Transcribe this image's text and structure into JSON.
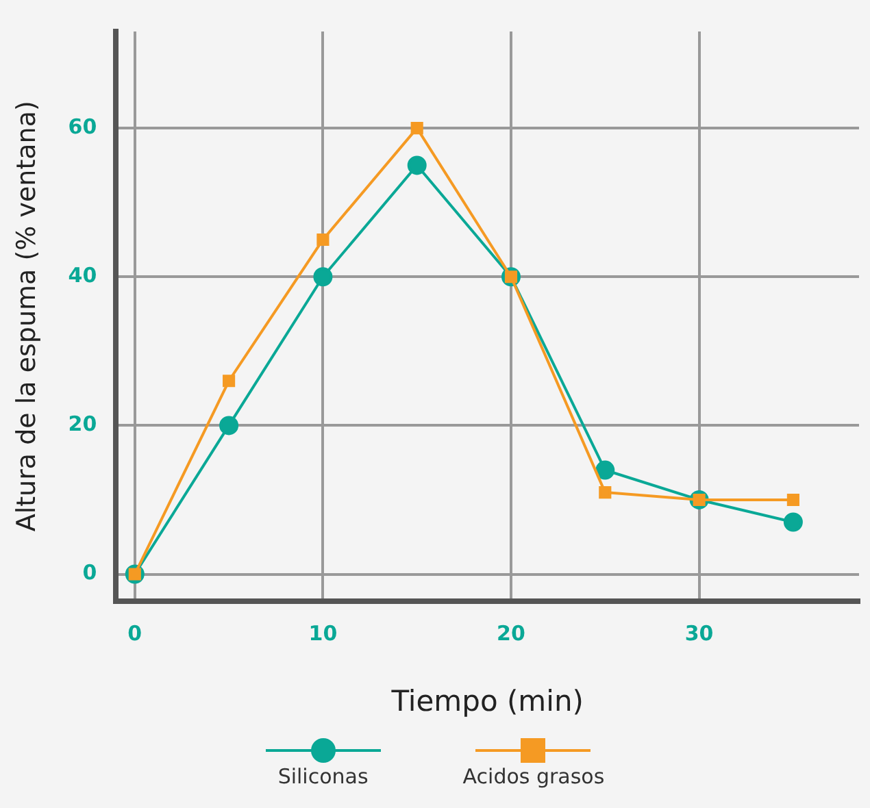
{
  "chart_data": {
    "type": "line",
    "xlabel": "Tiempo (min)",
    "ylabel": "Altura de la espuma (% ventana)",
    "x": [
      0,
      5,
      10,
      15,
      20,
      25,
      30,
      35
    ],
    "series": [
      {
        "name": "Siliconas",
        "color": "#0aa896",
        "marker": "circle",
        "values": [
          0,
          20,
          40,
          55,
          40,
          14,
          10,
          7
        ]
      },
      {
        "name": "Acidos grasos",
        "color": "#f59a23",
        "marker": "square",
        "values": [
          0,
          26,
          45,
          60,
          40,
          11,
          10,
          10
        ]
      }
    ],
    "xlim": [
      -1,
      38.5
    ],
    "xticks": [
      0,
      10,
      20,
      30
    ],
    "ylim": [
      -3.6,
      73
    ],
    "yticks": [
      0,
      20,
      40,
      60
    ],
    "grid": true,
    "legend": "bottom",
    "line_style": "solid"
  }
}
